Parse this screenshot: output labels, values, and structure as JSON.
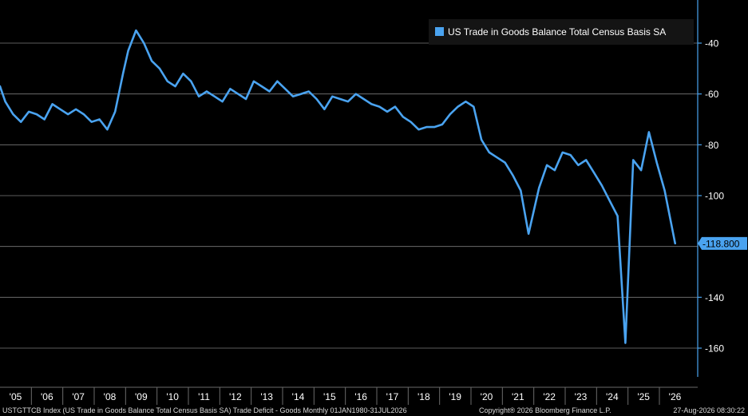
{
  "chart_data": {
    "type": "line",
    "title": "",
    "xlabel": "",
    "ylabel": "",
    "ylim": [
      -172,
      0
    ],
    "grid": true,
    "legend": "top-right",
    "y_ticks": [
      -40,
      -60,
      -80,
      -100,
      -140,
      -160
    ],
    "x_tick_labels": [
      "'05",
      "'06",
      "'07",
      "'08",
      "'09",
      "'10",
      "'11",
      "'12",
      "'13",
      "'14",
      "'15",
      "'16",
      "'17",
      "'18",
      "'19",
      "'20",
      "'21",
      "'22",
      "'23",
      "'24",
      "'25",
      "'26"
    ],
    "last_value_label": "-118.800",
    "series": [
      {
        "name": "US Trade in Goods Balance Total Census Basis SA",
        "color": "#4aa3f0",
        "x": [
          "2005-01",
          "2005-03",
          "2005-06",
          "2005-09",
          "2005-12",
          "2006-03",
          "2006-06",
          "2006-09",
          "2006-12",
          "2007-03",
          "2007-06",
          "2007-09",
          "2007-12",
          "2008-03",
          "2008-06",
          "2008-09",
          "2008-12",
          "2009-02",
          "2009-05",
          "2009-08",
          "2009-11",
          "2010-02",
          "2010-05",
          "2010-08",
          "2010-11",
          "2011-02",
          "2011-05",
          "2011-08",
          "2011-11",
          "2012-02",
          "2012-05",
          "2012-08",
          "2012-11",
          "2013-02",
          "2013-05",
          "2013-08",
          "2013-11",
          "2014-02",
          "2014-05",
          "2014-08",
          "2014-11",
          "2015-02",
          "2015-05",
          "2015-08",
          "2015-11",
          "2016-02",
          "2016-05",
          "2016-08",
          "2016-11",
          "2017-02",
          "2017-05",
          "2017-08",
          "2017-11",
          "2018-02",
          "2018-05",
          "2018-08",
          "2018-11",
          "2019-02",
          "2019-05",
          "2019-08",
          "2019-11",
          "2020-02",
          "2020-05",
          "2020-08",
          "2020-11",
          "2021-02",
          "2021-05",
          "2021-08",
          "2021-11",
          "2022-03",
          "2022-06",
          "2022-09",
          "2022-12",
          "2023-03",
          "2023-06",
          "2023-09",
          "2023-12",
          "2024-03",
          "2024-06",
          "2024-09",
          "2024-12",
          "2025-03",
          "2025-06",
          "2025-09",
          "2025-12",
          "2026-03",
          "2026-07"
        ],
        "values": [
          -57,
          -63,
          -68,
          -71,
          -67,
          -68,
          -70,
          -64,
          -66,
          -68,
          -66,
          -68,
          -71,
          -70,
          -74,
          -67,
          -52,
          -43,
          -35,
          -40,
          -47,
          -50,
          -55,
          -57,
          -52,
          -55,
          -61,
          -59,
          -61,
          -63,
          -58,
          -60,
          -62,
          -55,
          -57,
          -59,
          -55,
          -58,
          -61,
          -60,
          -59,
          -62,
          -66,
          -61,
          -62,
          -63,
          -60,
          -62,
          -64,
          -65,
          -67,
          -65,
          -69,
          -71,
          -74,
          -73,
          -73,
          -72,
          -68,
          -65,
          -63,
          -65,
          -78,
          -83,
          -85,
          -87,
          -92,
          -98,
          -115,
          -97,
          -88,
          -90,
          -83,
          -84,
          -88,
          -86,
          -91,
          -96,
          -102,
          -108,
          -158,
          -86,
          -90,
          -75,
          -87,
          -98,
          -118.8
        ]
      }
    ]
  },
  "footer": {
    "left": "USTGTTCB Index (US Trade in Goods Balance Total Census Basis SA) Trade Deficit - Goods Monthly 01JAN1980-31JUL2026",
    "center": "Copyright® 2026 Bloomberg Finance L.P.",
    "right": "27-Aug-2026 08:30:22"
  }
}
